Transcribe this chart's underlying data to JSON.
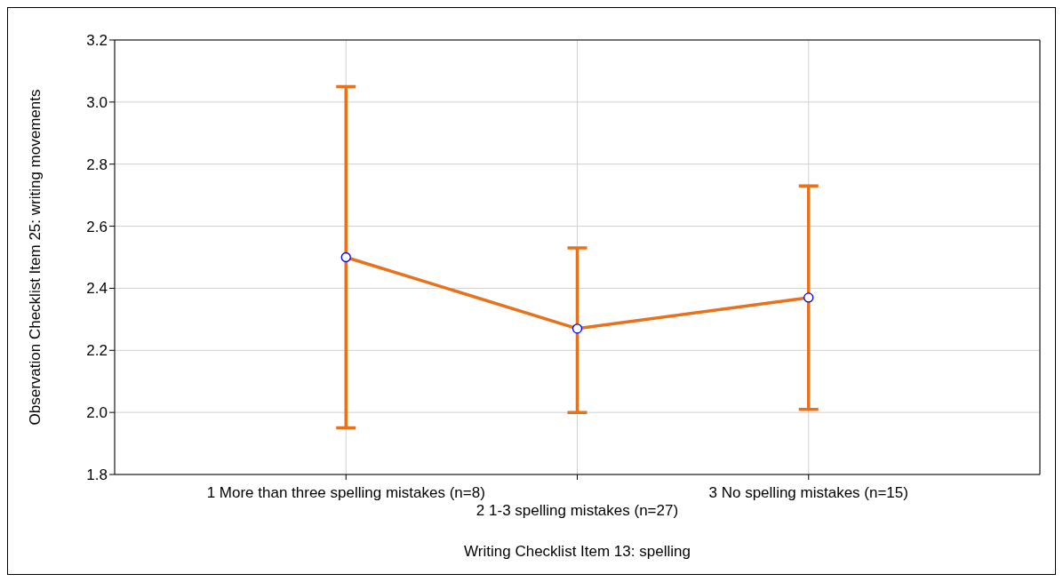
{
  "chart_data": {
    "type": "line",
    "xlabel": "Writing Checklist Item 13: spelling",
    "ylabel": "Observation Checklist Item 25: writing movements",
    "categories": [
      "1 More than three spelling mistakes (n=8)",
      "2 1-3 spelling mistakes (n=27)",
      "3 No spelling mistakes (n=15)"
    ],
    "values": [
      2.5,
      2.27,
      2.37
    ],
    "color": "#e8711c",
    "errors": [
      [
        1.95,
        3.05
      ],
      [
        2.0,
        2.53
      ],
      [
        2.01,
        2.73
      ]
    ],
    "ylim": [
      1.8,
      3.2
    ],
    "yticks": [
      {
        "value": 1.8,
        "label": "1.8"
      },
      {
        "value": 2.0,
        "label": "2.0"
      },
      {
        "value": 2.2,
        "label": "2.2"
      },
      {
        "value": 2.4,
        "label": "2.4"
      },
      {
        "value": 2.6,
        "label": "2.6"
      },
      {
        "value": 2.8,
        "label": "2.8"
      },
      {
        "value": 3.0,
        "label": "3.0"
      },
      {
        "value": 3.2,
        "label": "3.2"
      }
    ],
    "grid": true,
    "marker": "circle",
    "line_style": "solid"
  }
}
